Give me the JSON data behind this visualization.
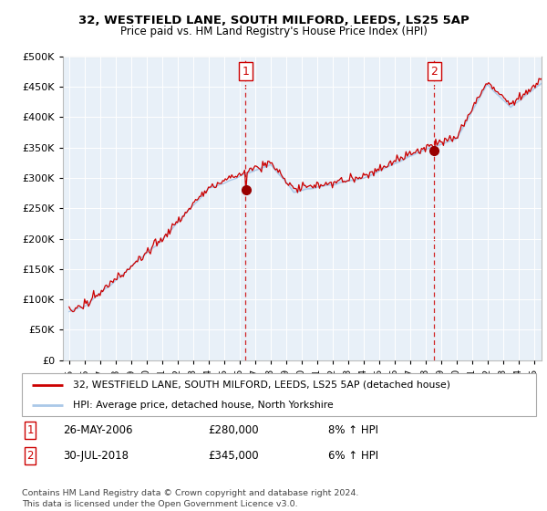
{
  "title1": "32, WESTFIELD LANE, SOUTH MILFORD, LEEDS, LS25 5AP",
  "title2": "Price paid vs. HM Land Registry's House Price Index (HPI)",
  "legend_line1": "32, WESTFIELD LANE, SOUTH MILFORD, LEEDS, LS25 5AP (detached house)",
  "legend_line2": "HPI: Average price, detached house, North Yorkshire",
  "annotation1": {
    "label": "1",
    "date": "26-MAY-2006",
    "price": "£280,000",
    "pct": "8% ↑ HPI"
  },
  "annotation2": {
    "label": "2",
    "date": "30-JUL-2018",
    "price": "£345,000",
    "pct": "6% ↑ HPI"
  },
  "footer": "Contains HM Land Registry data © Crown copyright and database right 2024.\nThis data is licensed under the Open Government Licence v3.0.",
  "hpi_color": "#aac8e8",
  "price_color": "#cc0000",
  "bg_color": "#e8f0f8",
  "fill_color": "#c8ddf0",
  "annotation_color": "#cc0000",
  "grid_color": "#cccccc",
  "ylim": [
    0,
    500000
  ],
  "yticks": [
    0,
    50000,
    100000,
    150000,
    200000,
    250000,
    300000,
    350000,
    400000,
    450000,
    500000
  ],
  "t1_year": 2006.4,
  "t2_year": 2018.58,
  "t1_price": 280000,
  "t2_price": 345000
}
